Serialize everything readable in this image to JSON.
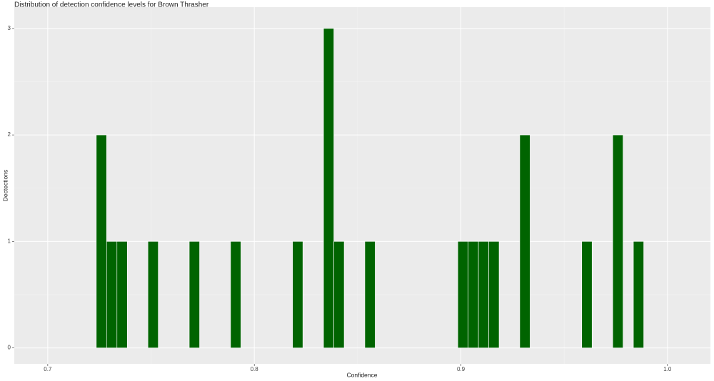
{
  "chart_data": {
    "type": "histogram",
    "title": "Distribution of detection confidence levels for Brown Thrasher",
    "x_label": "Confidence",
    "y_label": "Dectections",
    "bins": [
      0.7235,
      0.7285,
      0.7335,
      0.7385,
      0.7435,
      0.7485,
      0.7535,
      0.7585,
      0.7635,
      0.7685,
      0.7735,
      0.7785,
      0.7835,
      0.7885,
      0.7935,
      0.7985,
      0.8035,
      0.8085,
      0.8135,
      0.8185,
      0.8235,
      0.8285,
      0.8335,
      0.8385,
      0.8435,
      0.8485,
      0.8535,
      0.8585,
      0.8635,
      0.8685,
      0.8735,
      0.8785,
      0.8835,
      0.8885,
      0.8935,
      0.8985,
      0.9035,
      0.9085,
      0.9135,
      0.9185,
      0.9235,
      0.9285,
      0.9335,
      0.9385,
      0.9435,
      0.9485,
      0.9535,
      0.9585,
      0.9635,
      0.9685,
      0.9735,
      0.9785,
      0.9835,
      0.9885
    ],
    "values": [
      2,
      1,
      1,
      0,
      0,
      1,
      0,
      0,
      0,
      1,
      0,
      0,
      0,
      1,
      0,
      0,
      0,
      0,
      0,
      1,
      0,
      0,
      3,
      1,
      0,
      0,
      1,
      0,
      0,
      0,
      0,
      0,
      0,
      0,
      0,
      1,
      1,
      1,
      1,
      0,
      0,
      2,
      0,
      0,
      0,
      0,
      0,
      1,
      0,
      0,
      2,
      0,
      1
    ],
    "color": "#006400",
    "xlim": [
      0.6838,
      1.0208
    ],
    "xticks": [
      0.7,
      0.8,
      0.9,
      {
        "value": 1.0,
        "label": "1.0"
      }
    ],
    "ylim": [
      -0.15,
      3.2
    ],
    "yticks": [
      0,
      1,
      2,
      3
    ],
    "grid": true
  }
}
